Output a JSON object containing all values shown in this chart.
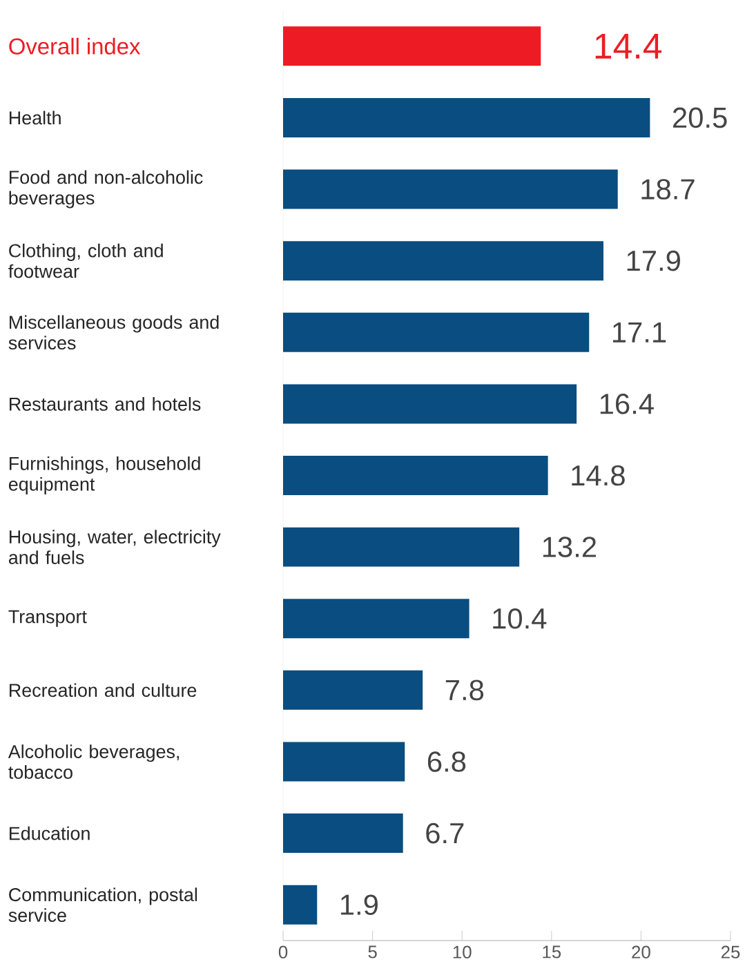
{
  "chart_data": {
    "type": "bar",
    "orientation": "horizontal",
    "categories": [
      "Overall index",
      "Health",
      "Food and non-alcoholic beverages",
      "Clothing, cloth and footwear",
      "Miscellaneous goods and services",
      "Restaurants and hotels",
      "Furnishings, household equipment",
      "Housing, water, electricity and fuels",
      "Transport",
      "Recreation and culture",
      "Alcoholic beverages, tobacco",
      "Education",
      "Communication, postal service"
    ],
    "values": [
      14.4,
      20.5,
      18.7,
      17.9,
      17.1,
      16.4,
      14.8,
      13.2,
      10.4,
      7.8,
      6.8,
      6.7,
      1.9
    ],
    "colors": [
      "#ed1c24",
      "#0a4d80",
      "#0a4d80",
      "#0a4d80",
      "#0a4d80",
      "#0a4d80",
      "#0a4d80",
      "#0a4d80",
      "#0a4d80",
      "#0a4d80",
      "#0a4d80",
      "#0a4d80",
      "#0a4d80"
    ],
    "xlim": [
      0,
      25
    ],
    "xticks": [
      0,
      5,
      10,
      15,
      20,
      25
    ],
    "data_labels": true
  }
}
